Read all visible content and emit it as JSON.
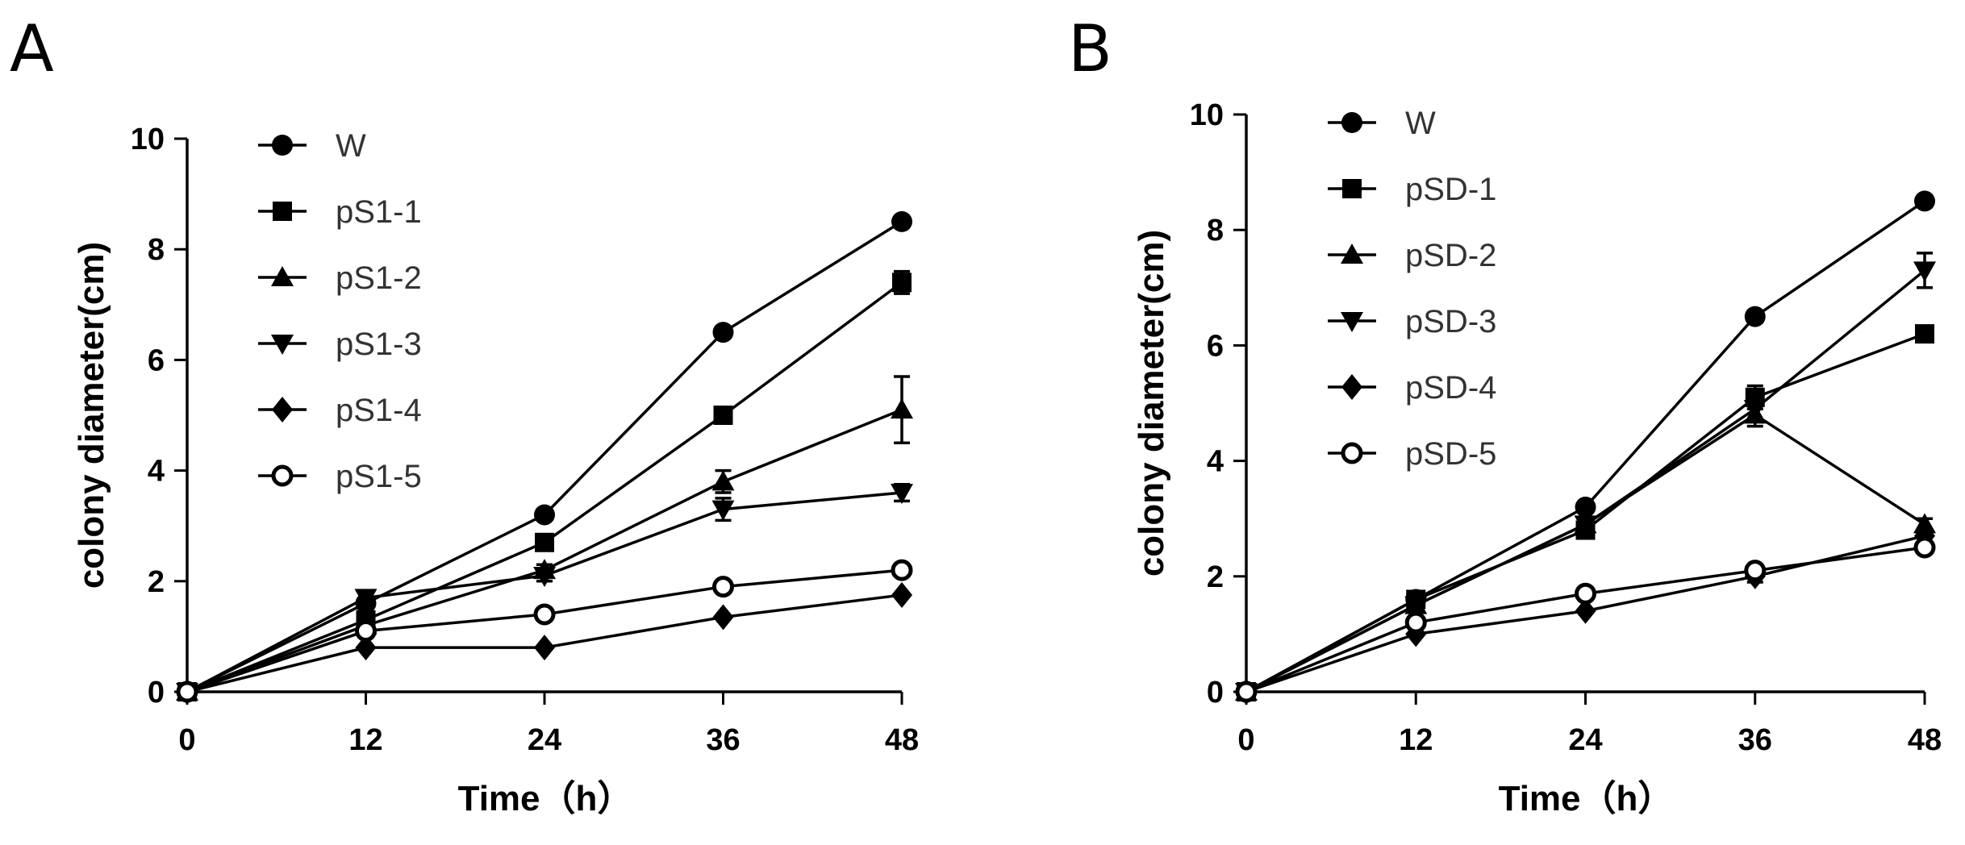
{
  "chart_data": [
    {
      "panel": "A",
      "type": "line",
      "xlabel": "Time（h）",
      "ylabel": "colony diameter(cm)",
      "x": [
        0,
        12,
        24,
        36,
        48
      ],
      "xticks": [
        "0",
        "12",
        "24",
        "36",
        "48"
      ],
      "yticks": [
        "0",
        "2",
        "4",
        "6",
        "8",
        "10"
      ],
      "ylim": [
        0,
        10
      ],
      "legend_position": "top-left",
      "series": [
        {
          "name": "W",
          "marker": "circle",
          "values": [
            0,
            1.6,
            3.2,
            6.5,
            8.5
          ],
          "errors": [
            0,
            0.05,
            0.05,
            0.1,
            0.1
          ]
        },
        {
          "name": "pS1-1",
          "marker": "square",
          "values": [
            0,
            1.3,
            2.7,
            5.0,
            7.4
          ],
          "errors": [
            0,
            0.05,
            0.1,
            0.1,
            0.2
          ]
        },
        {
          "name": "pS1-2",
          "marker": "triangle-up",
          "values": [
            0,
            1.2,
            2.2,
            3.8,
            5.1
          ],
          "errors": [
            0,
            0.1,
            0.1,
            0.2,
            0.6
          ]
        },
        {
          "name": "pS1-3",
          "marker": "triangle-down",
          "values": [
            0,
            1.7,
            2.1,
            3.3,
            3.6
          ],
          "errors": [
            0,
            0.1,
            0.1,
            0.2,
            0.15
          ]
        },
        {
          "name": "pS1-4",
          "marker": "diamond",
          "values": [
            0,
            0.8,
            0.8,
            1.35,
            1.75
          ],
          "errors": [
            0,
            0.05,
            0.05,
            0.05,
            0.05
          ]
        },
        {
          "name": "pS1-5",
          "marker": "circle-open",
          "values": [
            0,
            1.1,
            1.4,
            1.9,
            2.2
          ],
          "errors": [
            0,
            0.05,
            0.05,
            0.05,
            0.05
          ]
        }
      ]
    },
    {
      "panel": "B",
      "type": "line",
      "xlabel": "Time（h）",
      "ylabel": "colony diameter(cm)",
      "x": [
        0,
        12,
        24,
        36,
        48
      ],
      "xticks": [
        "0",
        "12",
        "24",
        "36",
        "48"
      ],
      "yticks": [
        "0",
        "2",
        "4",
        "6",
        "8",
        "10"
      ],
      "ylim": [
        0,
        10
      ],
      "legend_position": "top-left",
      "series": [
        {
          "name": "W",
          "marker": "circle",
          "values": [
            0,
            1.6,
            3.2,
            6.5,
            8.5
          ],
          "errors": [
            0,
            0.05,
            0.05,
            0.1,
            0.1
          ]
        },
        {
          "name": "pSD-1",
          "marker": "square",
          "values": [
            0,
            1.6,
            2.8,
            5.1,
            6.2
          ],
          "errors": [
            0,
            0.1,
            0.1,
            0.2,
            0.1
          ]
        },
        {
          "name": "pSD-2",
          "marker": "triangle-up",
          "values": [
            0,
            1.5,
            2.9,
            4.8,
            2.9
          ],
          "errors": [
            0,
            0.1,
            0.1,
            0.2,
            0.1
          ]
        },
        {
          "name": "pSD-3",
          "marker": "triangle-down",
          "values": [
            0,
            1.5,
            2.9,
            4.9,
            7.3
          ],
          "errors": [
            0,
            0.1,
            0.1,
            0.2,
            0.3
          ]
        },
        {
          "name": "pSD-4",
          "marker": "diamond",
          "values": [
            0,
            1.0,
            1.4,
            2.0,
            2.7
          ],
          "errors": [
            0,
            0.05,
            0.05,
            0.1,
            0.1
          ]
        },
        {
          "name": "pSD-5",
          "marker": "circle-open",
          "values": [
            0,
            1.2,
            1.7,
            2.1,
            2.5
          ],
          "errors": [
            0,
            0.1,
            0.1,
            0.1,
            0.1
          ]
        }
      ]
    }
  ]
}
